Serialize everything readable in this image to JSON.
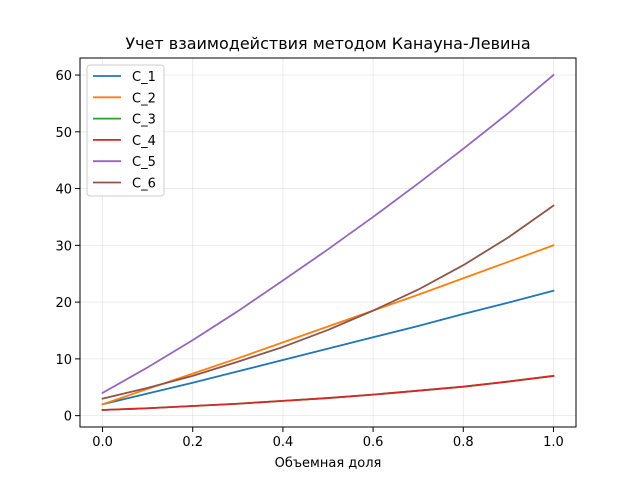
{
  "chart_data": {
    "type": "line",
    "title": "Учет взаимодействия методом Канауна-Левина",
    "xlabel": "Объемная доля",
    "ylabel": "",
    "xlim": [
      -0.05,
      1.05
    ],
    "ylim": [
      -2,
      63
    ],
    "xticks": [
      "0.0",
      "0.2",
      "0.4",
      "0.6",
      "0.8",
      "1.0"
    ],
    "yticks": [
      "0",
      "10",
      "20",
      "30",
      "40",
      "50",
      "60"
    ],
    "xtick_values": [
      0,
      0.2,
      0.4,
      0.6,
      0.8,
      1.0
    ],
    "ytick_values": [
      0,
      10,
      20,
      30,
      40,
      50,
      60
    ],
    "grid": true,
    "legend_position": "top-left",
    "x": [
      0,
      0.1,
      0.2,
      0.3,
      0.4,
      0.5,
      0.6,
      0.7,
      0.8,
      0.9,
      1.0
    ],
    "series": [
      {
        "name": "C_1",
        "color": "#1f77b4",
        "values": [
          2.0,
          3.9,
          5.8,
          7.8,
          9.8,
          11.8,
          13.8,
          15.8,
          17.9,
          19.9,
          22.0
        ]
      },
      {
        "name": "C_2",
        "color": "#ff7f0e",
        "values": [
          2.0,
          4.7,
          7.4,
          10.1,
          12.9,
          15.7,
          18.5,
          21.3,
          24.2,
          27.1,
          30.0
        ]
      },
      {
        "name": "C_3",
        "color": "#2ca02c",
        "values": [
          1.0,
          1.3,
          1.7,
          2.1,
          2.6,
          3.1,
          3.7,
          4.4,
          5.1,
          6.0,
          7.0
        ]
      },
      {
        "name": "C_4",
        "color": "#d62728",
        "values": [
          1.0,
          1.3,
          1.7,
          2.1,
          2.6,
          3.1,
          3.7,
          4.4,
          5.1,
          6.0,
          7.0
        ]
      },
      {
        "name": "C_5",
        "color": "#9467bd",
        "values": [
          4.0,
          8.5,
          13.3,
          18.4,
          23.8,
          29.3,
          35.0,
          40.9,
          47.0,
          53.3,
          60.0
        ]
      },
      {
        "name": "C_6",
        "color": "#8c564b",
        "values": [
          3.0,
          4.9,
          7.0,
          9.5,
          12.1,
          15.1,
          18.5,
          22.2,
          26.5,
          31.4,
          37.0
        ]
      }
    ]
  }
}
